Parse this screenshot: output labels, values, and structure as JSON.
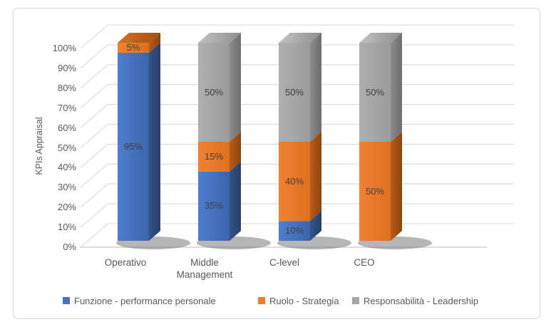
{
  "chart_data": {
    "type": "bar",
    "subtype": "3d-stacked-column-100pct",
    "title": "",
    "xlabel": "",
    "ylabel": "KPIs Appraisal",
    "categories": [
      "Operativo",
      "Middle Management",
      "C-level",
      "CEO"
    ],
    "series": [
      {
        "name": "Funzione - performance personale",
        "color": "#4472C4",
        "values": [
          95,
          35,
          10,
          0
        ]
      },
      {
        "name": "Ruolo - Strategia",
        "color": "#ED7D31",
        "values": [
          5,
          15,
          40,
          50
        ]
      },
      {
        "name": "Responsabilità - Leadership",
        "color": "#A6A6A6",
        "values": [
          0,
          50,
          50,
          50
        ]
      }
    ],
    "data_labels": [
      "95%",
      "5%",
      "35%",
      "15%",
      "50%",
      "10%",
      "40%",
      "50%",
      "50%",
      "50%"
    ],
    "yticks": [
      "0%",
      "10%",
      "20%",
      "30%",
      "40%",
      "50%",
      "60%",
      "70%",
      "80%",
      "90%",
      "100%"
    ],
    "ylim": [
      0,
      100
    ],
    "grid": true,
    "legend_position": "bottom",
    "colors": {
      "gridline": "#D9D9D9",
      "axis_line": "#C6C6C6",
      "tick_text": "#595959",
      "value_label_text": "#3F3F3F",
      "frame_border": "#D9D9D9",
      "background": "#FFFFFF"
    }
  }
}
